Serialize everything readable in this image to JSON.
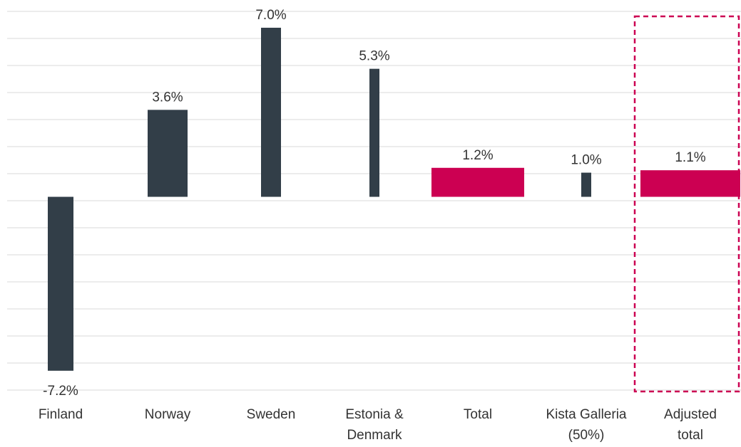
{
  "chart_data": {
    "type": "bar",
    "categories": [
      "Finland",
      "Norway",
      "Sweden",
      "Estonia & Denmark",
      "Total",
      "Kista Galleria (50%)",
      "Adjusted total"
    ],
    "values": [
      -7.2,
      3.6,
      7.0,
      5.3,
      1.2,
      1.0,
      1.1
    ],
    "value_labels": [
      "-7.2%",
      "3.6%",
      "7.0%",
      "5.3%",
      "1.2%",
      "1.0%",
      "1.1%"
    ],
    "colors": [
      "#323e48",
      "#323e48",
      "#323e48",
      "#323e48",
      "#cc0052",
      "#323e48",
      "#cc0052"
    ],
    "ylim": [
      -8,
      7.5
    ],
    "grid": true
  }
}
